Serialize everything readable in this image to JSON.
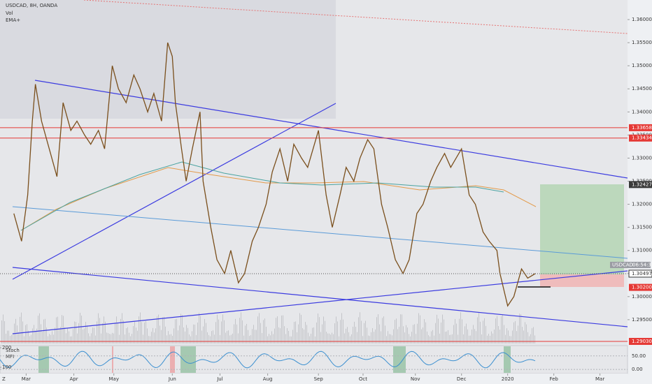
{
  "chart_data": {
    "type": "line",
    "title": "USDCAD, 8H, OANDA",
    "indicators": [
      "Vol",
      "EMA+"
    ],
    "x": [
      -8,
      -3,
      1,
      4,
      6,
      10,
      15,
      20,
      24,
      29,
      33,
      38,
      42,
      47,
      51,
      56,
      60,
      65,
      70,
      74,
      79,
      83,
      88,
      92,
      95,
      97,
      101,
      104,
      108,
      113,
      115,
      120,
      124,
      129,
      133,
      138,
      142,
      147,
      151,
      156,
      160,
      165,
      170,
      174,
      179,
      183,
      190,
      195,
      199,
      204,
      208,
      213,
      217,
      222,
      226,
      231,
      235,
      240,
      245,
      249,
      254,
      258,
      263,
      267,
      272,
      276,
      283,
      288,
      292,
      297,
      301,
      306,
      308,
      313,
      317,
      322,
      326,
      331
    ],
    "series": [
      {
        "name": "USDCAD",
        "color": "#7a4f1c",
        "values": [
          1.318,
          1.312,
          1.322,
          1.338,
          1.346,
          1.338,
          1.332,
          1.326,
          1.342,
          1.336,
          1.338,
          1.335,
          1.333,
          1.336,
          1.332,
          1.35,
          1.345,
          1.342,
          1.348,
          1.345,
          1.34,
          1.344,
          1.338,
          1.355,
          1.352,
          1.342,
          1.332,
          1.325,
          1.332,
          1.34,
          1.325,
          1.315,
          1.308,
          1.305,
          1.31,
          1.303,
          1.305,
          1.312,
          1.315,
          1.32,
          1.327,
          1.332,
          1.325,
          1.333,
          1.33,
          1.328,
          1.336,
          1.322,
          1.315,
          1.322,
          1.328,
          1.325,
          1.33,
          1.334,
          1.332,
          1.32,
          1.315,
          1.308,
          1.305,
          1.308,
          1.318,
          1.32,
          1.325,
          1.328,
          1.331,
          1.328,
          1.332,
          1.322,
          1.32,
          1.314,
          1.312,
          1.31,
          1.305,
          1.298,
          1.3,
          1.306,
          1.304,
          1.305
        ]
      }
    ],
    "xlim": [
      -17,
      390
    ],
    "xticks": [
      {
        "value": 0,
        "label": "Mar"
      },
      {
        "value": 31,
        "label": "Apr"
      },
      {
        "value": 57,
        "label": "May"
      },
      {
        "value": 95,
        "label": "Jun"
      },
      {
        "value": 126,
        "label": "Jul"
      },
      {
        "value": 157,
        "label": "Aug"
      },
      {
        "value": 190,
        "label": "Sep"
      },
      {
        "value": 219,
        "label": "Oct"
      },
      {
        "value": 253,
        "label": "Nov"
      },
      {
        "value": 283,
        "label": "Dec"
      },
      {
        "value": 313,
        "label": "2020"
      },
      {
        "value": 343,
        "label": "Feb"
      },
      {
        "value": 373,
        "label": "Mar"
      }
    ],
    "ylim": [
      1.28939,
      1.36424
    ],
    "yticks": [
      {
        "value": 1.36,
        "label": "1.36000"
      },
      {
        "value": 1.355,
        "label": "1.35500"
      },
      {
        "value": 1.35,
        "label": "1.35000"
      },
      {
        "value": 1.345,
        "label": "1.34500"
      },
      {
        "value": 1.34,
        "label": "1.34000"
      },
      {
        "value": 1.335,
        "label": "1.33500"
      },
      {
        "value": 1.33,
        "label": "1.33000"
      },
      {
        "value": 1.325,
        "label": "1.32500"
      },
      {
        "value": 1.32,
        "label": "1.32000"
      },
      {
        "value": 1.315,
        "label": "1.31500"
      },
      {
        "value": 1.31,
        "label": "1.31000"
      },
      {
        "value": 1.305,
        "label": "1.30500"
      },
      {
        "value": 1.3,
        "label": "1.30000"
      },
      {
        "value": 1.295,
        "label": "1.29500"
      }
    ],
    "price_labels": [
      {
        "value": 1.33658,
        "label": "1.33658",
        "color": "#e53935",
        "line": true
      },
      {
        "value": 1.33434,
        "label": "1.33434",
        "color": "#e53935",
        "line": true
      },
      {
        "value": 1.32427,
        "label": "1.32427",
        "color": "#3a3a3a",
        "line": false
      },
      {
        "value": 1.302,
        "label": "1.30200",
        "color": "#e53935",
        "line": false
      },
      {
        "value": 1.2903,
        "label": "1.29030",
        "color": "#e53935",
        "line": true
      }
    ],
    "current_price": {
      "name": "USDCAD",
      "time": "06:54:31",
      "value": 1.30497,
      "label": "1.30497"
    },
    "oscillator": {
      "labels": [
        "Stoch",
        "MFI"
      ],
      "ylim_left": [
        68,
        211
      ],
      "yticks_left": [
        200,
        100
      ],
      "ylim_right": [
        -15,
        88
      ],
      "yticks_right": [
        {
          "value": 50,
          "label": "50.00"
        },
        {
          "value": 0,
          "label": "0.00"
        }
      ]
    },
    "corner_label": "Z"
  }
}
